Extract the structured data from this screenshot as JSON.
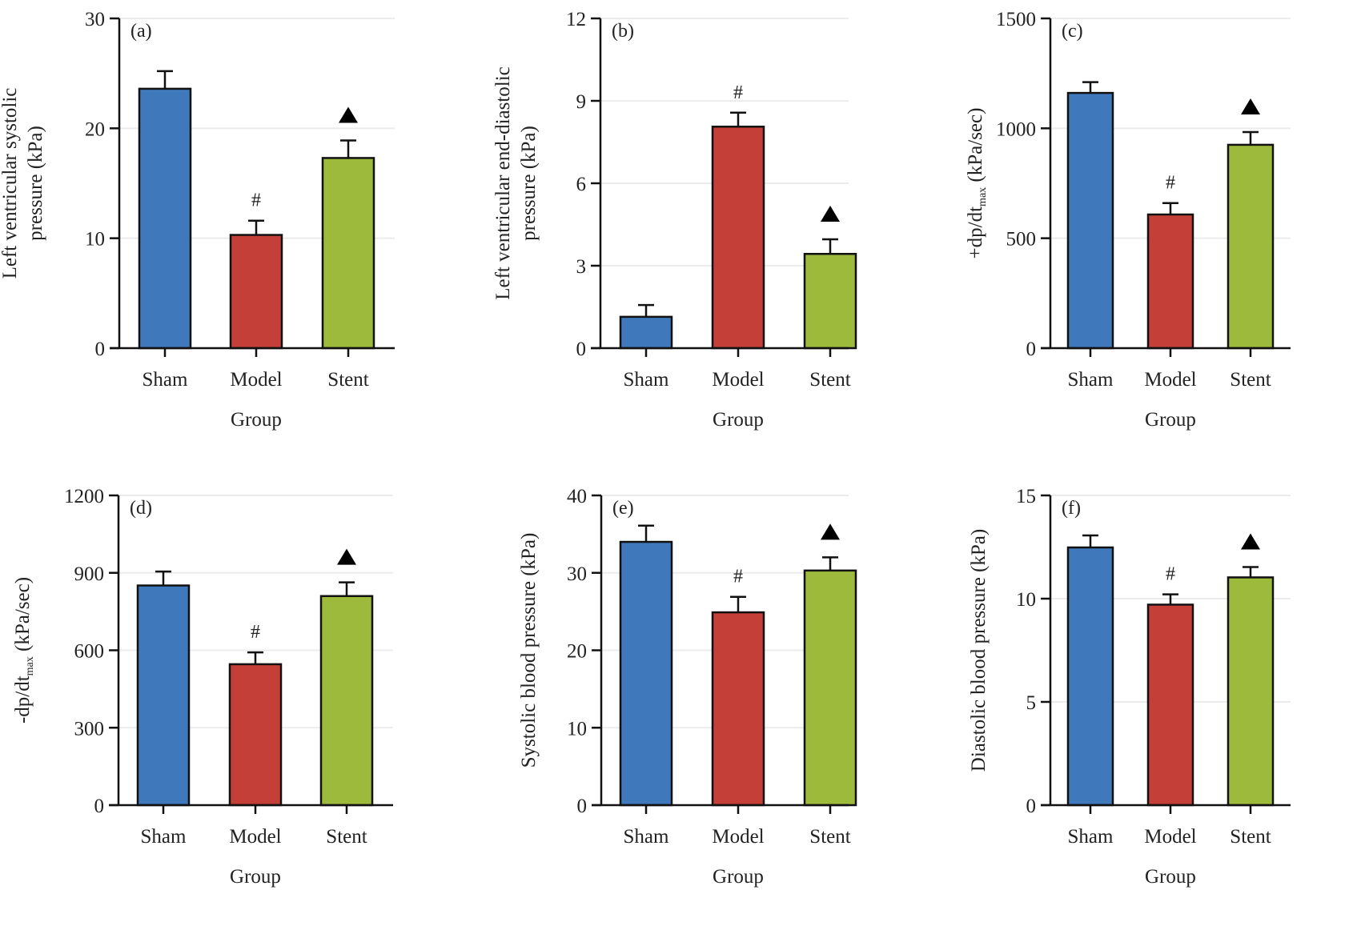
{
  "figure": {
    "colors": {
      "Sham": "#3f78bb",
      "Model": "#c43f37",
      "Stent": "#9eba3d",
      "axis": "#111111",
      "grid": "#ececec"
    }
  },
  "chart_data": [
    {
      "type": "bar",
      "panel": "(a)",
      "title": "",
      "xlabel": "Group",
      "ylabel": [
        "Left ventricular systolic",
        "pressure (kPa)"
      ],
      "categories": [
        "Sham",
        "Model",
        "Stent"
      ],
      "values": [
        23.6,
        10.3,
        17.3
      ],
      "error": [
        1.6,
        1.3,
        1.6
      ],
      "markers": [
        "",
        "#",
        "▲"
      ],
      "ylim": [
        0,
        30
      ],
      "yticks": [
        0,
        10,
        20,
        30
      ],
      "grid": true
    },
    {
      "type": "bar",
      "panel": "(b)",
      "title": "",
      "xlabel": "Group",
      "ylabel": [
        "Left ventricular end-diastolic",
        "pressure (kPa)"
      ],
      "categories": [
        "Sham",
        "Model",
        "Stent"
      ],
      "values": [
        1.14,
        8.06,
        3.43
      ],
      "error": [
        0.43,
        0.51,
        0.53
      ],
      "markers": [
        "",
        "#",
        "▲"
      ],
      "ylim": [
        0,
        12
      ],
      "yticks": [
        0,
        3,
        6,
        9,
        12
      ],
      "grid": true
    },
    {
      "type": "bar",
      "panel": "(c)",
      "title": "",
      "xlabel": "Group",
      "ylabel": [
        "+dp/dt",
        "max",
        " (kPa/sec)"
      ],
      "categories": [
        "Sham",
        "Model",
        "Stent"
      ],
      "values": [
        1161,
        608,
        925
      ],
      "error": [
        49,
        52,
        58
      ],
      "markers": [
        "",
        "#",
        "▲"
      ],
      "ylim": [
        0,
        1500
      ],
      "yticks": [
        0,
        500,
        1000,
        1500
      ],
      "grid": true
    },
    {
      "type": "bar",
      "panel": "(d)",
      "title": "",
      "xlabel": "Group",
      "ylabel": [
        "-dp/dt",
        "max",
        " (kPa/sec)"
      ],
      "categories": [
        "Sham",
        "Model",
        "Stent"
      ],
      "values": [
        851,
        546,
        810
      ],
      "error": [
        54,
        46,
        53
      ],
      "markers": [
        "",
        "#",
        "▲"
      ],
      "ylim": [
        0,
        1200
      ],
      "yticks": [
        0,
        300,
        600,
        900,
        1200
      ],
      "grid": true
    },
    {
      "type": "bar",
      "panel": "(e)",
      "title": "",
      "xlabel": "Group",
      "ylabel": [
        "Systolic blood pressure (kPa)"
      ],
      "categories": [
        "Sham",
        "Model",
        "Stent"
      ],
      "values": [
        34.0,
        24.9,
        30.3
      ],
      "error": [
        2.1,
        2.0,
        1.7
      ],
      "markers": [
        "",
        "#",
        "▲"
      ],
      "ylim": [
        0,
        40
      ],
      "yticks": [
        0,
        10,
        20,
        30,
        40
      ],
      "grid": true
    },
    {
      "type": "bar",
      "panel": "(f)",
      "title": "",
      "xlabel": "Group",
      "ylabel": [
        "Diastolic blood pressure (kPa)"
      ],
      "categories": [
        "Sham",
        "Model",
        "Stent"
      ],
      "values": [
        12.48,
        9.71,
        11.03
      ],
      "error": [
        0.58,
        0.5,
        0.5
      ],
      "markers": [
        "",
        "#",
        "▲"
      ],
      "ylim": [
        0,
        15
      ],
      "yticks": [
        0,
        5,
        10,
        15
      ],
      "grid": true
    }
  ]
}
